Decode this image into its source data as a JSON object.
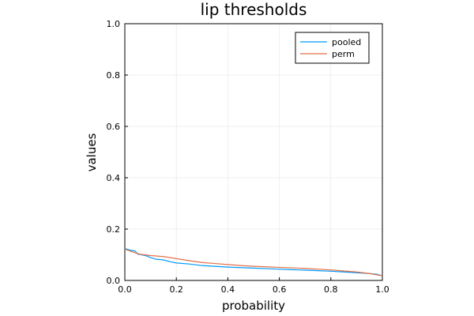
{
  "chart_data": {
    "type": "line",
    "title": "lip thresholds",
    "xlabel": "probability",
    "ylabel": "values",
    "xlim": [
      0.0,
      1.0
    ],
    "ylim": [
      0.0,
      1.0
    ],
    "xticks": [
      "0.0",
      "0.2",
      "0.4",
      "0.6",
      "0.8",
      "1.0"
    ],
    "yticks": [
      "0.0",
      "0.2",
      "0.4",
      "0.6",
      "0.8",
      "1.0"
    ],
    "grid": true,
    "legend_position": "top-right",
    "series": [
      {
        "name": "pooled",
        "color": "#009AFA",
        "x": [
          0.0,
          0.02,
          0.04,
          0.05,
          0.08,
          0.1,
          0.12,
          0.15,
          0.18,
          0.2,
          0.25,
          0.3,
          0.35,
          0.4,
          0.45,
          0.5,
          0.55,
          0.6,
          0.65,
          0.7,
          0.75,
          0.8,
          0.85,
          0.9,
          0.95,
          0.98,
          1.0
        ],
        "y": [
          0.125,
          0.118,
          0.115,
          0.103,
          0.097,
          0.089,
          0.083,
          0.08,
          0.072,
          0.068,
          0.064,
          0.058,
          0.055,
          0.052,
          0.05,
          0.048,
          0.046,
          0.044,
          0.042,
          0.04,
          0.038,
          0.036,
          0.033,
          0.03,
          0.027,
          0.024,
          0.018
        ]
      },
      {
        "name": "perm",
        "color": "#E36F47",
        "x": [
          0.0,
          0.02,
          0.04,
          0.06,
          0.1,
          0.15,
          0.2,
          0.25,
          0.3,
          0.35,
          0.4,
          0.45,
          0.5,
          0.55,
          0.6,
          0.65,
          0.7,
          0.75,
          0.8,
          0.85,
          0.9,
          0.95,
          1.0
        ],
        "y": [
          0.122,
          0.115,
          0.108,
          0.102,
          0.097,
          0.093,
          0.085,
          0.077,
          0.07,
          0.066,
          0.062,
          0.058,
          0.055,
          0.053,
          0.051,
          0.049,
          0.047,
          0.044,
          0.041,
          0.037,
          0.033,
          0.027,
          0.018
        ]
      }
    ]
  }
}
